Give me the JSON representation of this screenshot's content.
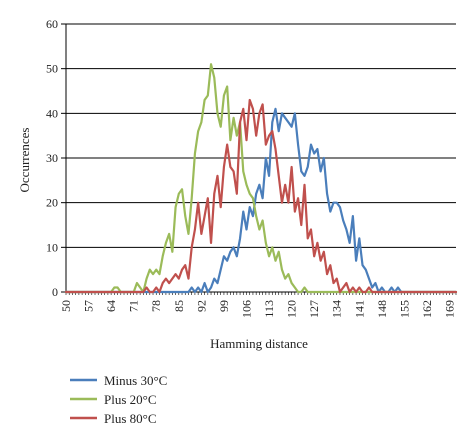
{
  "chart_data": {
    "type": "line",
    "xlabel": "Hamming distance",
    "ylabel": "Occurrences",
    "xlim": [
      50,
      171
    ],
    "ylim": [
      0,
      60
    ],
    "y_ticks": [
      0,
      10,
      20,
      30,
      40,
      50,
      60
    ],
    "x_tick_values": [
      50,
      57,
      64,
      71,
      78,
      85,
      92,
      99,
      106,
      113,
      120,
      127,
      134,
      141,
      148,
      155,
      162,
      169
    ],
    "x_tick_labels": [
      "50",
      "57",
      "64",
      "71",
      "78",
      "85",
      "92",
      "99",
      "106",
      "113",
      "120",
      "127",
      "134",
      "141",
      "148",
      "155",
      "162",
      "169"
    ],
    "grid": "horizontal",
    "legend_position": "bottom-left",
    "series": [
      {
        "name": "Minus 30°C",
        "color": "#4a7ebb",
        "points": [
          [
            50,
            0
          ],
          [
            85,
            0
          ],
          [
            88,
            0
          ],
          [
            89,
            1
          ],
          [
            90,
            0
          ],
          [
            91,
            1
          ],
          [
            92,
            0
          ],
          [
            93,
            2
          ],
          [
            94,
            0
          ],
          [
            95,
            1
          ],
          [
            96,
            3
          ],
          [
            97,
            2
          ],
          [
            98,
            5
          ],
          [
            99,
            8
          ],
          [
            100,
            7
          ],
          [
            101,
            9
          ],
          [
            102,
            10
          ],
          [
            103,
            8
          ],
          [
            104,
            12
          ],
          [
            105,
            18
          ],
          [
            106,
            14
          ],
          [
            107,
            19
          ],
          [
            108,
            17
          ],
          [
            109,
            22
          ],
          [
            110,
            24
          ],
          [
            111,
            21
          ],
          [
            112,
            30
          ],
          [
            113,
            26
          ],
          [
            114,
            38
          ],
          [
            115,
            41
          ],
          [
            116,
            36
          ],
          [
            117,
            40
          ],
          [
            118,
            39
          ],
          [
            119,
            38
          ],
          [
            120,
            37
          ],
          [
            121,
            40
          ],
          [
            122,
            33
          ],
          [
            123,
            27
          ],
          [
            124,
            26
          ],
          [
            125,
            28
          ],
          [
            126,
            33
          ],
          [
            127,
            31
          ],
          [
            128,
            32
          ],
          [
            129,
            27
          ],
          [
            130,
            30
          ],
          [
            131,
            22
          ],
          [
            132,
            18
          ],
          [
            133,
            20
          ],
          [
            134,
            20
          ],
          [
            135,
            19
          ],
          [
            136,
            16
          ],
          [
            137,
            14
          ],
          [
            138,
            11
          ],
          [
            139,
            17
          ],
          [
            140,
            7
          ],
          [
            141,
            12
          ],
          [
            142,
            6
          ],
          [
            143,
            5
          ],
          [
            144,
            3
          ],
          [
            145,
            1
          ],
          [
            146,
            2
          ],
          [
            147,
            0
          ],
          [
            148,
            1
          ],
          [
            149,
            0
          ],
          [
            150,
            0
          ],
          [
            151,
            1
          ],
          [
            152,
            0
          ],
          [
            153,
            1
          ],
          [
            154,
            0
          ],
          [
            155,
            0
          ],
          [
            156,
            0
          ],
          [
            157,
            0
          ],
          [
            160,
            0
          ],
          [
            171,
            0
          ]
        ]
      },
      {
        "name": "Plus 20°C",
        "color": "#9bbb59",
        "points": [
          [
            50,
            0
          ],
          [
            64,
            0
          ],
          [
            65,
            1
          ],
          [
            66,
            1
          ],
          [
            67,
            0
          ],
          [
            68,
            0
          ],
          [
            69,
            0
          ],
          [
            70,
            0
          ],
          [
            71,
            0
          ],
          [
            72,
            2
          ],
          [
            73,
            1
          ],
          [
            74,
            0
          ],
          [
            75,
            3
          ],
          [
            76,
            5
          ],
          [
            77,
            4
          ],
          [
            78,
            5
          ],
          [
            79,
            4
          ],
          [
            80,
            8
          ],
          [
            81,
            11
          ],
          [
            82,
            13
          ],
          [
            83,
            9
          ],
          [
            84,
            19
          ],
          [
            85,
            22
          ],
          [
            86,
            23
          ],
          [
            87,
            17
          ],
          [
            88,
            13
          ],
          [
            89,
            21
          ],
          [
            90,
            31
          ],
          [
            91,
            36
          ],
          [
            92,
            38
          ],
          [
            93,
            43
          ],
          [
            94,
            44
          ],
          [
            95,
            51
          ],
          [
            96,
            48
          ],
          [
            97,
            40
          ],
          [
            98,
            37
          ],
          [
            99,
            44
          ],
          [
            100,
            46
          ],
          [
            101,
            34
          ],
          [
            102,
            39
          ],
          [
            103,
            35
          ],
          [
            104,
            38
          ],
          [
            105,
            27
          ],
          [
            106,
            24
          ],
          [
            107,
            22
          ],
          [
            108,
            21
          ],
          [
            109,
            17
          ],
          [
            110,
            14
          ],
          [
            111,
            16
          ],
          [
            112,
            11
          ],
          [
            113,
            8
          ],
          [
            114,
            10
          ],
          [
            115,
            7
          ],
          [
            116,
            9
          ],
          [
            117,
            5
          ],
          [
            118,
            3
          ],
          [
            119,
            4
          ],
          [
            120,
            2
          ],
          [
            121,
            1
          ],
          [
            122,
            0
          ],
          [
            123,
            0
          ],
          [
            124,
            1
          ],
          [
            125,
            0
          ],
          [
            126,
            0
          ],
          [
            171,
            0
          ]
        ]
      },
      {
        "name": "Plus 80°C",
        "color": "#c0504d",
        "points": [
          [
            50,
            0
          ],
          [
            72,
            0
          ],
          [
            73,
            0
          ],
          [
            74,
            0
          ],
          [
            75,
            1
          ],
          [
            76,
            0
          ],
          [
            77,
            0
          ],
          [
            78,
            1
          ],
          [
            79,
            0
          ],
          [
            80,
            2
          ],
          [
            81,
            3
          ],
          [
            82,
            2
          ],
          [
            83,
            3
          ],
          [
            84,
            4
          ],
          [
            85,
            3
          ],
          [
            86,
            5
          ],
          [
            87,
            6
          ],
          [
            88,
            3
          ],
          [
            89,
            10
          ],
          [
            90,
            14
          ],
          [
            91,
            20
          ],
          [
            92,
            13
          ],
          [
            93,
            17
          ],
          [
            94,
            21
          ],
          [
            95,
            11
          ],
          [
            96,
            22
          ],
          [
            97,
            26
          ],
          [
            98,
            19
          ],
          [
            99,
            28
          ],
          [
            100,
            33
          ],
          [
            101,
            28
          ],
          [
            102,
            27
          ],
          [
            103,
            22
          ],
          [
            104,
            38
          ],
          [
            105,
            41
          ],
          [
            106,
            34
          ],
          [
            107,
            43
          ],
          [
            108,
            41
          ],
          [
            109,
            35
          ],
          [
            110,
            40
          ],
          [
            111,
            42
          ],
          [
            112,
            33
          ],
          [
            113,
            35
          ],
          [
            114,
            36
          ],
          [
            115,
            32
          ],
          [
            116,
            26
          ],
          [
            117,
            20
          ],
          [
            118,
            24
          ],
          [
            119,
            20
          ],
          [
            120,
            28
          ],
          [
            121,
            18
          ],
          [
            122,
            21
          ],
          [
            123,
            15
          ],
          [
            124,
            24
          ],
          [
            125,
            12
          ],
          [
            126,
            14
          ],
          [
            127,
            8
          ],
          [
            128,
            11
          ],
          [
            129,
            7
          ],
          [
            130,
            9
          ],
          [
            131,
            4
          ],
          [
            132,
            6
          ],
          [
            133,
            2
          ],
          [
            134,
            3
          ],
          [
            135,
            0
          ],
          [
            136,
            1
          ],
          [
            137,
            2
          ],
          [
            138,
            0
          ],
          [
            139,
            1
          ],
          [
            140,
            0
          ],
          [
            141,
            1
          ],
          [
            142,
            0
          ],
          [
            143,
            0
          ],
          [
            144,
            1
          ],
          [
            145,
            0
          ],
          [
            171,
            0
          ]
        ]
      }
    ]
  }
}
